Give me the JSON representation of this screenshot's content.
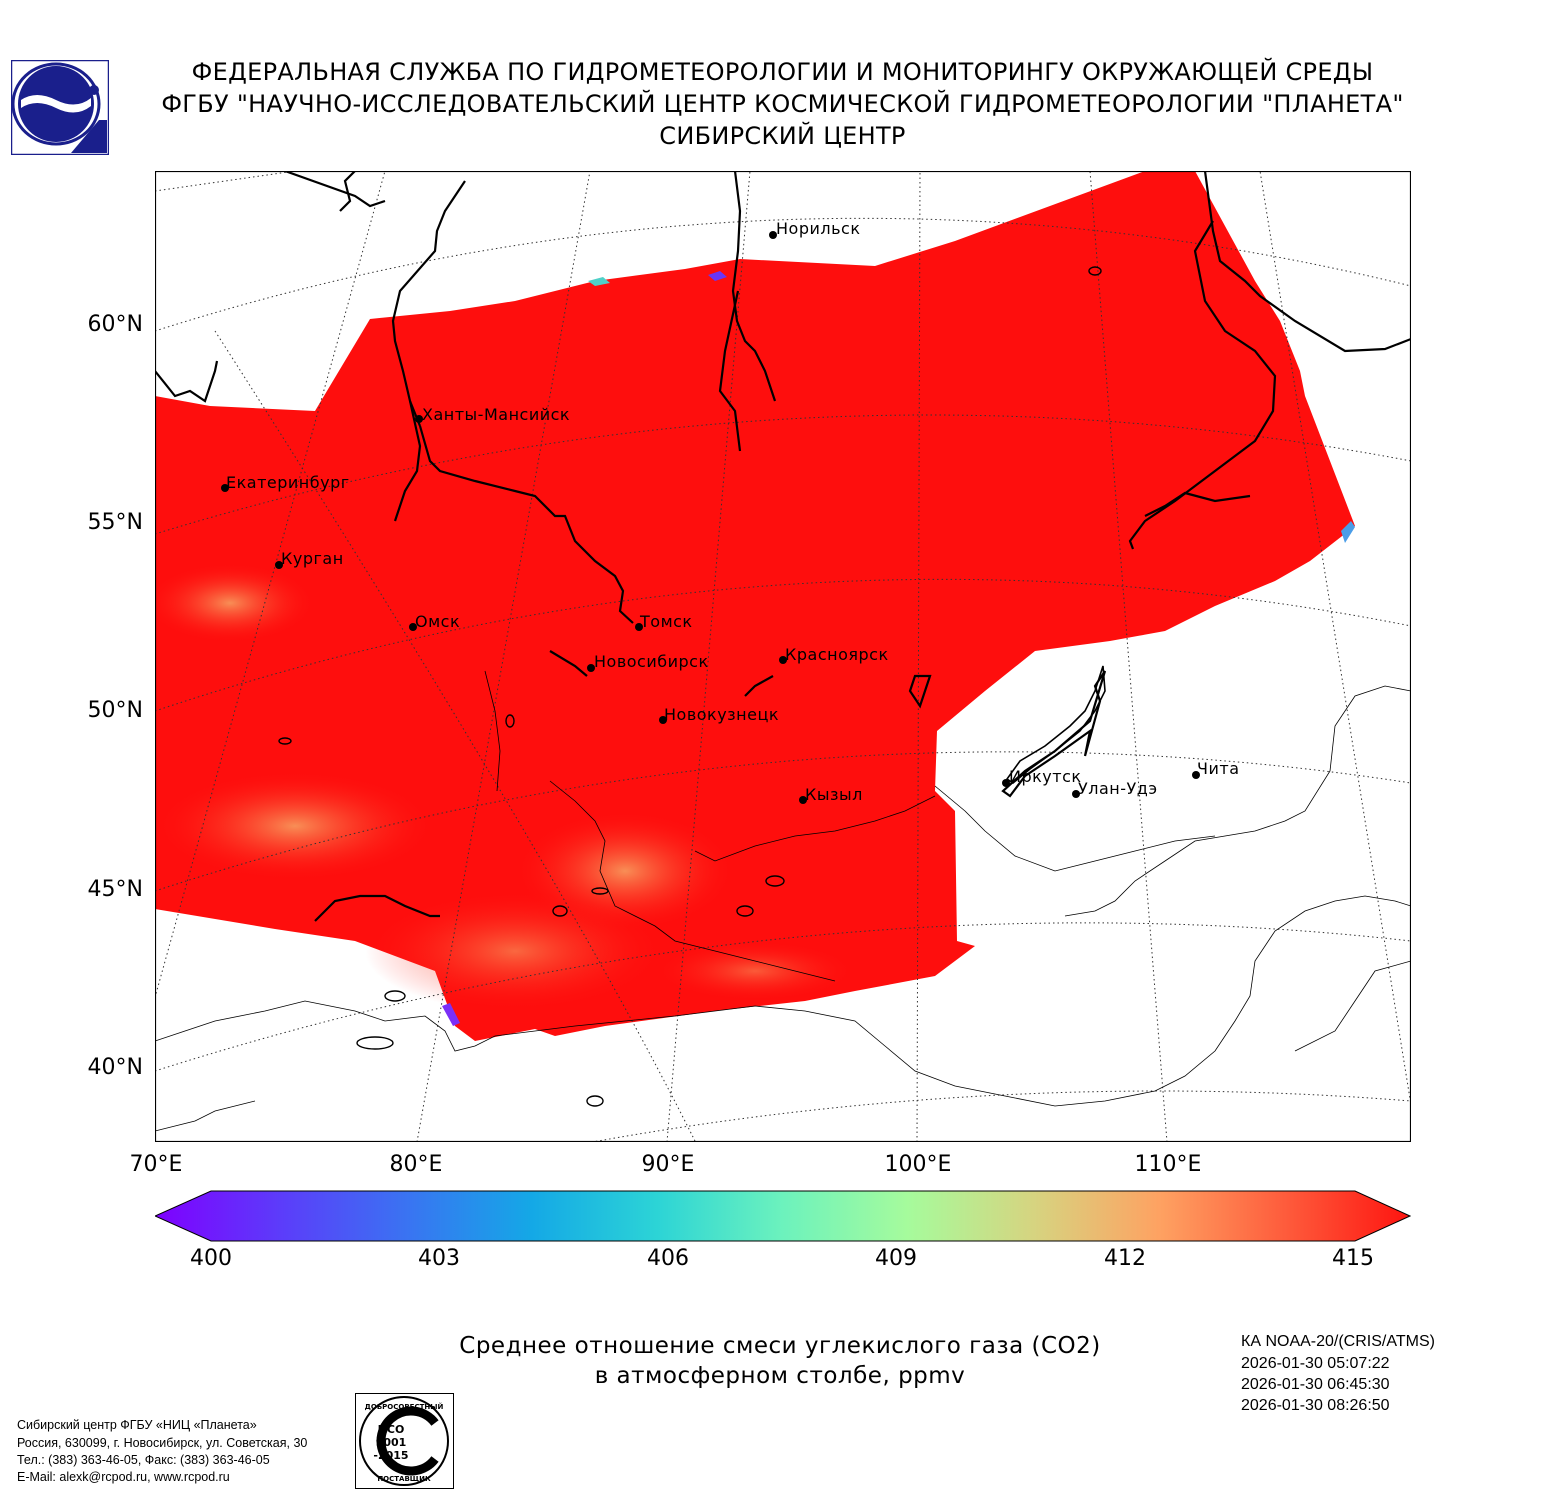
{
  "header": {
    "line1": "ФЕДЕРАЛЬНАЯ СЛУЖБА ПО ГИДРОМЕТЕОРОЛОГИИ И МОНИТОРИНГУ ОКРУЖАЮЩЕЙ СРЕДЫ",
    "line2": "ФГБУ \"НАУЧНО-ИССЛЕДОВАТЕЛЬСКИЙ ЦЕНТР КОСМИЧЕСКОЙ ГИДРОМЕТЕОРОЛОГИИ \"ПЛАНЕТА\"",
    "line3": "СИБИРСКИЙ ЦЕНТР"
  },
  "map": {
    "lat_ticks": [
      "60°N",
      "55°N",
      "50°N",
      "45°N",
      "40°N"
    ],
    "lon_ticks": [
      "70°E",
      "80°E",
      "90°E",
      "100°E",
      "110°E"
    ],
    "field_color": "#fe0e0d",
    "cities": [
      {
        "name": "Норильск"
      },
      {
        "name": "Ханты-Мансийск"
      },
      {
        "name": "Екатеринбург"
      },
      {
        "name": "Курган"
      },
      {
        "name": "Омск"
      },
      {
        "name": "Томск"
      },
      {
        "name": "Новосибирск"
      },
      {
        "name": "Красноярск"
      },
      {
        "name": "Новокузнецк"
      },
      {
        "name": "Кызыл"
      },
      {
        "name": "Иркутск"
      },
      {
        "name": "Улан-Удэ"
      },
      {
        "name": "Чита"
      }
    ]
  },
  "colorbar": {
    "min": 400,
    "max": 415,
    "ticks": [
      "400",
      "403",
      "406",
      "409",
      "412",
      "415"
    ],
    "colormap": "rainbow",
    "extend": "both"
  },
  "caption": {
    "line1": "Среднее отношение смеси углекислого газа (CO2)",
    "line2": "в атмосферном столбе, ppmv"
  },
  "satellite": {
    "line1": "КА NOAA-20/(CRIS/ATMS)",
    "line2": "2026-01-30 05:07:22",
    "line3": "2026-01-30 06:45:30",
    "line4": "2026-01-30 08:26:50"
  },
  "contact": {
    "line1": "Сибирский центр ФГБУ «НИЦ «Планета»",
    "line2": "Россия, 630099, г. Новосибирск, ул. Советская, 30",
    "line3": "Тел.: (383) 363-46-05, Факс: (383) 363-46-05",
    "line4": "E-Mail: alexk@rcpod.ru, www.rcpod.ru"
  },
  "certificate": {
    "top": "ДОБРОСОВЕСТНЫЙ",
    "iso1": "ИСО",
    "iso2": "9001",
    "iso3": "-2015",
    "bottom": "ПОСТАВЩИК"
  }
}
